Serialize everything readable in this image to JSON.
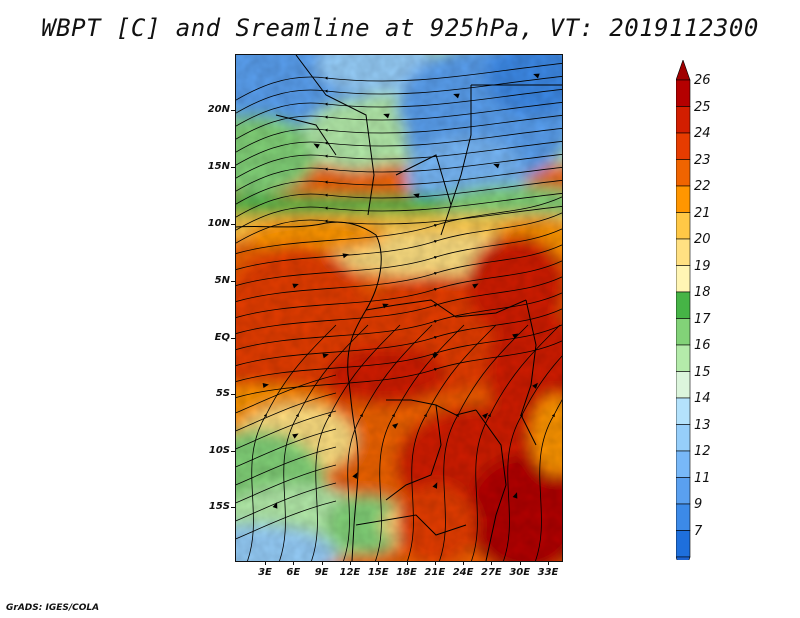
{
  "title": "WBPT [C] and Sreamline at 925hPa, VT: 2019112300",
  "credit": "GrADS: IGES/COLA",
  "map": {
    "lat_labels": [
      "20N",
      "15N",
      "10N",
      "5N",
      "EQ",
      "5S",
      "10S",
      "15S"
    ],
    "lon_labels": [
      "3E",
      "6E",
      "9E",
      "12E",
      "15E",
      "18E",
      "21E",
      "24E",
      "27E",
      "30E",
      "33E"
    ],
    "field": "wet-bulb potential temperature with 925hPa streamlines"
  },
  "colorbar": {
    "labels": [
      "7",
      "9",
      "11",
      "12",
      "13",
      "14",
      "15",
      "16",
      "17",
      "18",
      "19",
      "20",
      "21",
      "22",
      "23",
      "24",
      "25",
      "26"
    ],
    "colors": [
      "#1e6fdc",
      "#3c8ae8",
      "#5aa0f0",
      "#78b8f8",
      "#96cefa",
      "#b4e2fc",
      "#dcf5dc",
      "#b4ebaa",
      "#82d278",
      "#46b446",
      "#fff5b4",
      "#ffe082",
      "#ffc846",
      "#ff9600",
      "#f06400",
      "#e63c00",
      "#d21e00",
      "#b40000"
    ],
    "under_color": "#1e64d2",
    "over_color": "#a00000"
  }
}
